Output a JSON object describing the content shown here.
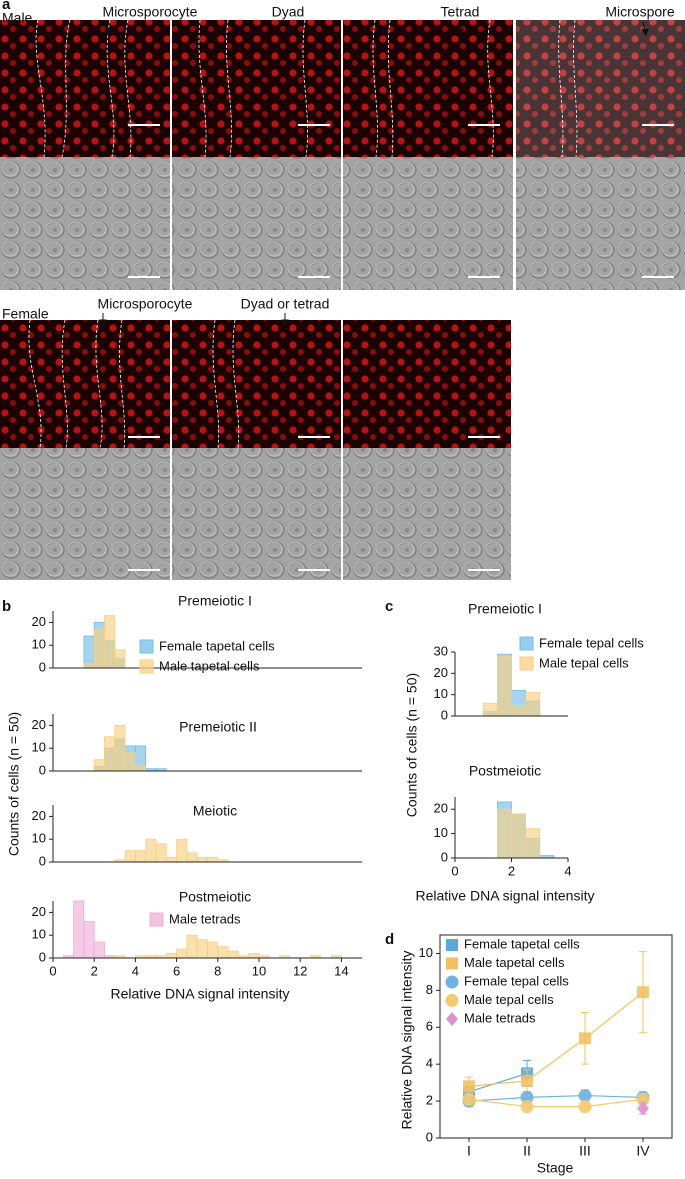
{
  "panel_a": {
    "label": "a",
    "male": {
      "label": "Male",
      "stages": [
        "Microsporocyte",
        "Dyad",
        "Tetrad",
        "Microspore"
      ]
    },
    "female": {
      "label": "Female",
      "stages": [
        "Microsporocyte",
        "Dyad or tetrad"
      ]
    }
  },
  "chart_data": [
    {
      "type": "histogram",
      "panel": "b",
      "title": "Premeiotic I",
      "ylabel": "Counts of cells (n = 50)",
      "xlim": [
        0,
        15
      ],
      "ylim": [
        0,
        25
      ],
      "yticks": [
        0,
        10,
        20
      ],
      "bins": [
        1.5,
        2,
        2.5,
        3,
        3.5
      ],
      "series": [
        {
          "name": "Female tapetal cells",
          "color": "#74bde6",
          "values": [
            14,
            20,
            12,
            4
          ]
        },
        {
          "name": "Male tapetal cells",
          "color": "#f8cf80",
          "values": [
            2,
            17,
            23,
            8
          ]
        }
      ]
    },
    {
      "type": "histogram",
      "title": "Premeiotic II",
      "xlim": [
        0,
        15
      ],
      "ylim": [
        0,
        25
      ],
      "yticks": [
        0,
        10,
        20
      ],
      "bins": [
        2,
        2.5,
        3,
        3.5,
        4,
        4.5,
        5,
        5.5
      ],
      "series": [
        {
          "color": "#74bde6",
          "values": [
            2,
            10,
            14,
            11,
            11,
            1,
            1
          ]
        },
        {
          "color": "#f8cf80",
          "values": [
            5,
            15,
            20,
            8,
            2,
            0,
            0
          ]
        }
      ]
    },
    {
      "type": "histogram",
      "title": "Meiotic",
      "xlim": [
        0,
        15
      ],
      "ylim": [
        0,
        25
      ],
      "yticks": [
        0,
        10,
        20
      ],
      "bins": [
        3,
        3.5,
        4,
        4.5,
        5,
        5.5,
        6,
        6.5,
        7,
        7.5,
        8,
        8.5
      ],
      "series": [
        {
          "color": "#f8cf80",
          "values": [
            1,
            5,
            5,
            10,
            8,
            2,
            10,
            4,
            2,
            2,
            1
          ]
        }
      ]
    },
    {
      "type": "histogram",
      "title": "Postmeiotic",
      "xlabel": "Relative DNA signal intensity",
      "xlim": [
        0,
        15
      ],
      "xticks": [
        0,
        2,
        4,
        6,
        8,
        10,
        12,
        14
      ],
      "ylim": [
        0,
        25
      ],
      "yticks": [
        0,
        10,
        20
      ],
      "bins": [
        0.5,
        1,
        1.5,
        2,
        2.5,
        3,
        3.5,
        4,
        4.5,
        5,
        5.5,
        6,
        6.5,
        7,
        7.5,
        8,
        8.5,
        9,
        9.5,
        10,
        10.5,
        11,
        11.5,
        12,
        12.5,
        13,
        13.5,
        14,
        14.5
      ],
      "series": [
        {
          "name": "Male tetrads",
          "color": "#eeadd8",
          "values": [
            1,
            25,
            16,
            7,
            1,
            0,
            0,
            0,
            0,
            0,
            0,
            0,
            0,
            0,
            0,
            0,
            0,
            0,
            0,
            0,
            0,
            0,
            0,
            0,
            0,
            0,
            0,
            0
          ]
        },
        {
          "color": "#f8cf80",
          "values": [
            0,
            0,
            0,
            0,
            0,
            1,
            0,
            1,
            1,
            1,
            2,
            4,
            10,
            8,
            7,
            5,
            3,
            1,
            2,
            1,
            0,
            1,
            0,
            0,
            1,
            0,
            1,
            0
          ]
        }
      ]
    },
    {
      "type": "histogram",
      "panel": "c",
      "title": "Premeiotic I",
      "ylabel": "Counts of cells (n = 50)",
      "xlim": [
        0,
        4
      ],
      "ylim": [
        0,
        30
      ],
      "yticks": [
        0,
        10,
        20,
        30
      ],
      "bins": [
        1,
        1.5,
        2,
        2.5,
        3
      ],
      "series": [
        {
          "name": "Female tepal cells",
          "color": "#74bde6",
          "values": [
            2,
            29,
            12,
            7
          ]
        },
        {
          "name": "Male tepal cells",
          "color": "#f8cf80",
          "values": [
            6,
            28,
            5,
            11
          ]
        }
      ]
    },
    {
      "type": "histogram",
      "title": "Postmeiotic",
      "xlabel": "Relative DNA signal intensity",
      "xlim": [
        0,
        4
      ],
      "xticks": [
        0,
        2,
        4
      ],
      "ylim": [
        0,
        25
      ],
      "yticks": [
        0,
        10,
        20
      ],
      "bins": [
        1.5,
        2,
        2.5,
        3,
        3.5
      ],
      "series": [
        {
          "color": "#74bde6",
          "values": [
            23,
            18,
            8,
            1
          ]
        },
        {
          "color": "#f8cf80",
          "values": [
            20,
            18,
            12,
            0
          ]
        }
      ]
    },
    {
      "type": "line",
      "panel": "d",
      "xlabel": "Stage",
      "ylabel": "Relative DNA signal intensity",
      "categories": [
        "I",
        "II",
        "III",
        "IV"
      ],
      "ylim": [
        0,
        11
      ],
      "yticks": [
        0,
        2,
        4,
        6,
        8,
        10
      ],
      "series": [
        {
          "name": "Female tapetal cells",
          "color": "#5aa9d9",
          "marker": "square",
          "values": [
            2.5,
            3.5,
            null,
            null
          ],
          "errors": [
            0.3,
            0.7,
            null,
            null
          ]
        },
        {
          "name": "Male tapetal cells",
          "color": "#f3c162",
          "marker": "square",
          "values": [
            2.8,
            3.1,
            5.4,
            7.9
          ],
          "errors": [
            0.5,
            0.6,
            1.4,
            2.2
          ]
        },
        {
          "name": "Female tepal cells",
          "color": "#6fb2df",
          "marker": "circle",
          "values": [
            2.0,
            2.2,
            2.3,
            2.2
          ],
          "errors": [
            0.3,
            0.3,
            0.3,
            0.3
          ]
        },
        {
          "name": "Male tepal cells",
          "color": "#f5c96f",
          "marker": "circle",
          "values": [
            2.1,
            1.7,
            1.7,
            2.1
          ],
          "errors": [
            0.3,
            0.3,
            0.3,
            0.3
          ]
        },
        {
          "name": "Male tetrads",
          "color": "#dc92cf",
          "marker": "diamond",
          "values": [
            null,
            null,
            null,
            1.6
          ],
          "errors": [
            null,
            null,
            null,
            0.3
          ]
        }
      ]
    }
  ]
}
